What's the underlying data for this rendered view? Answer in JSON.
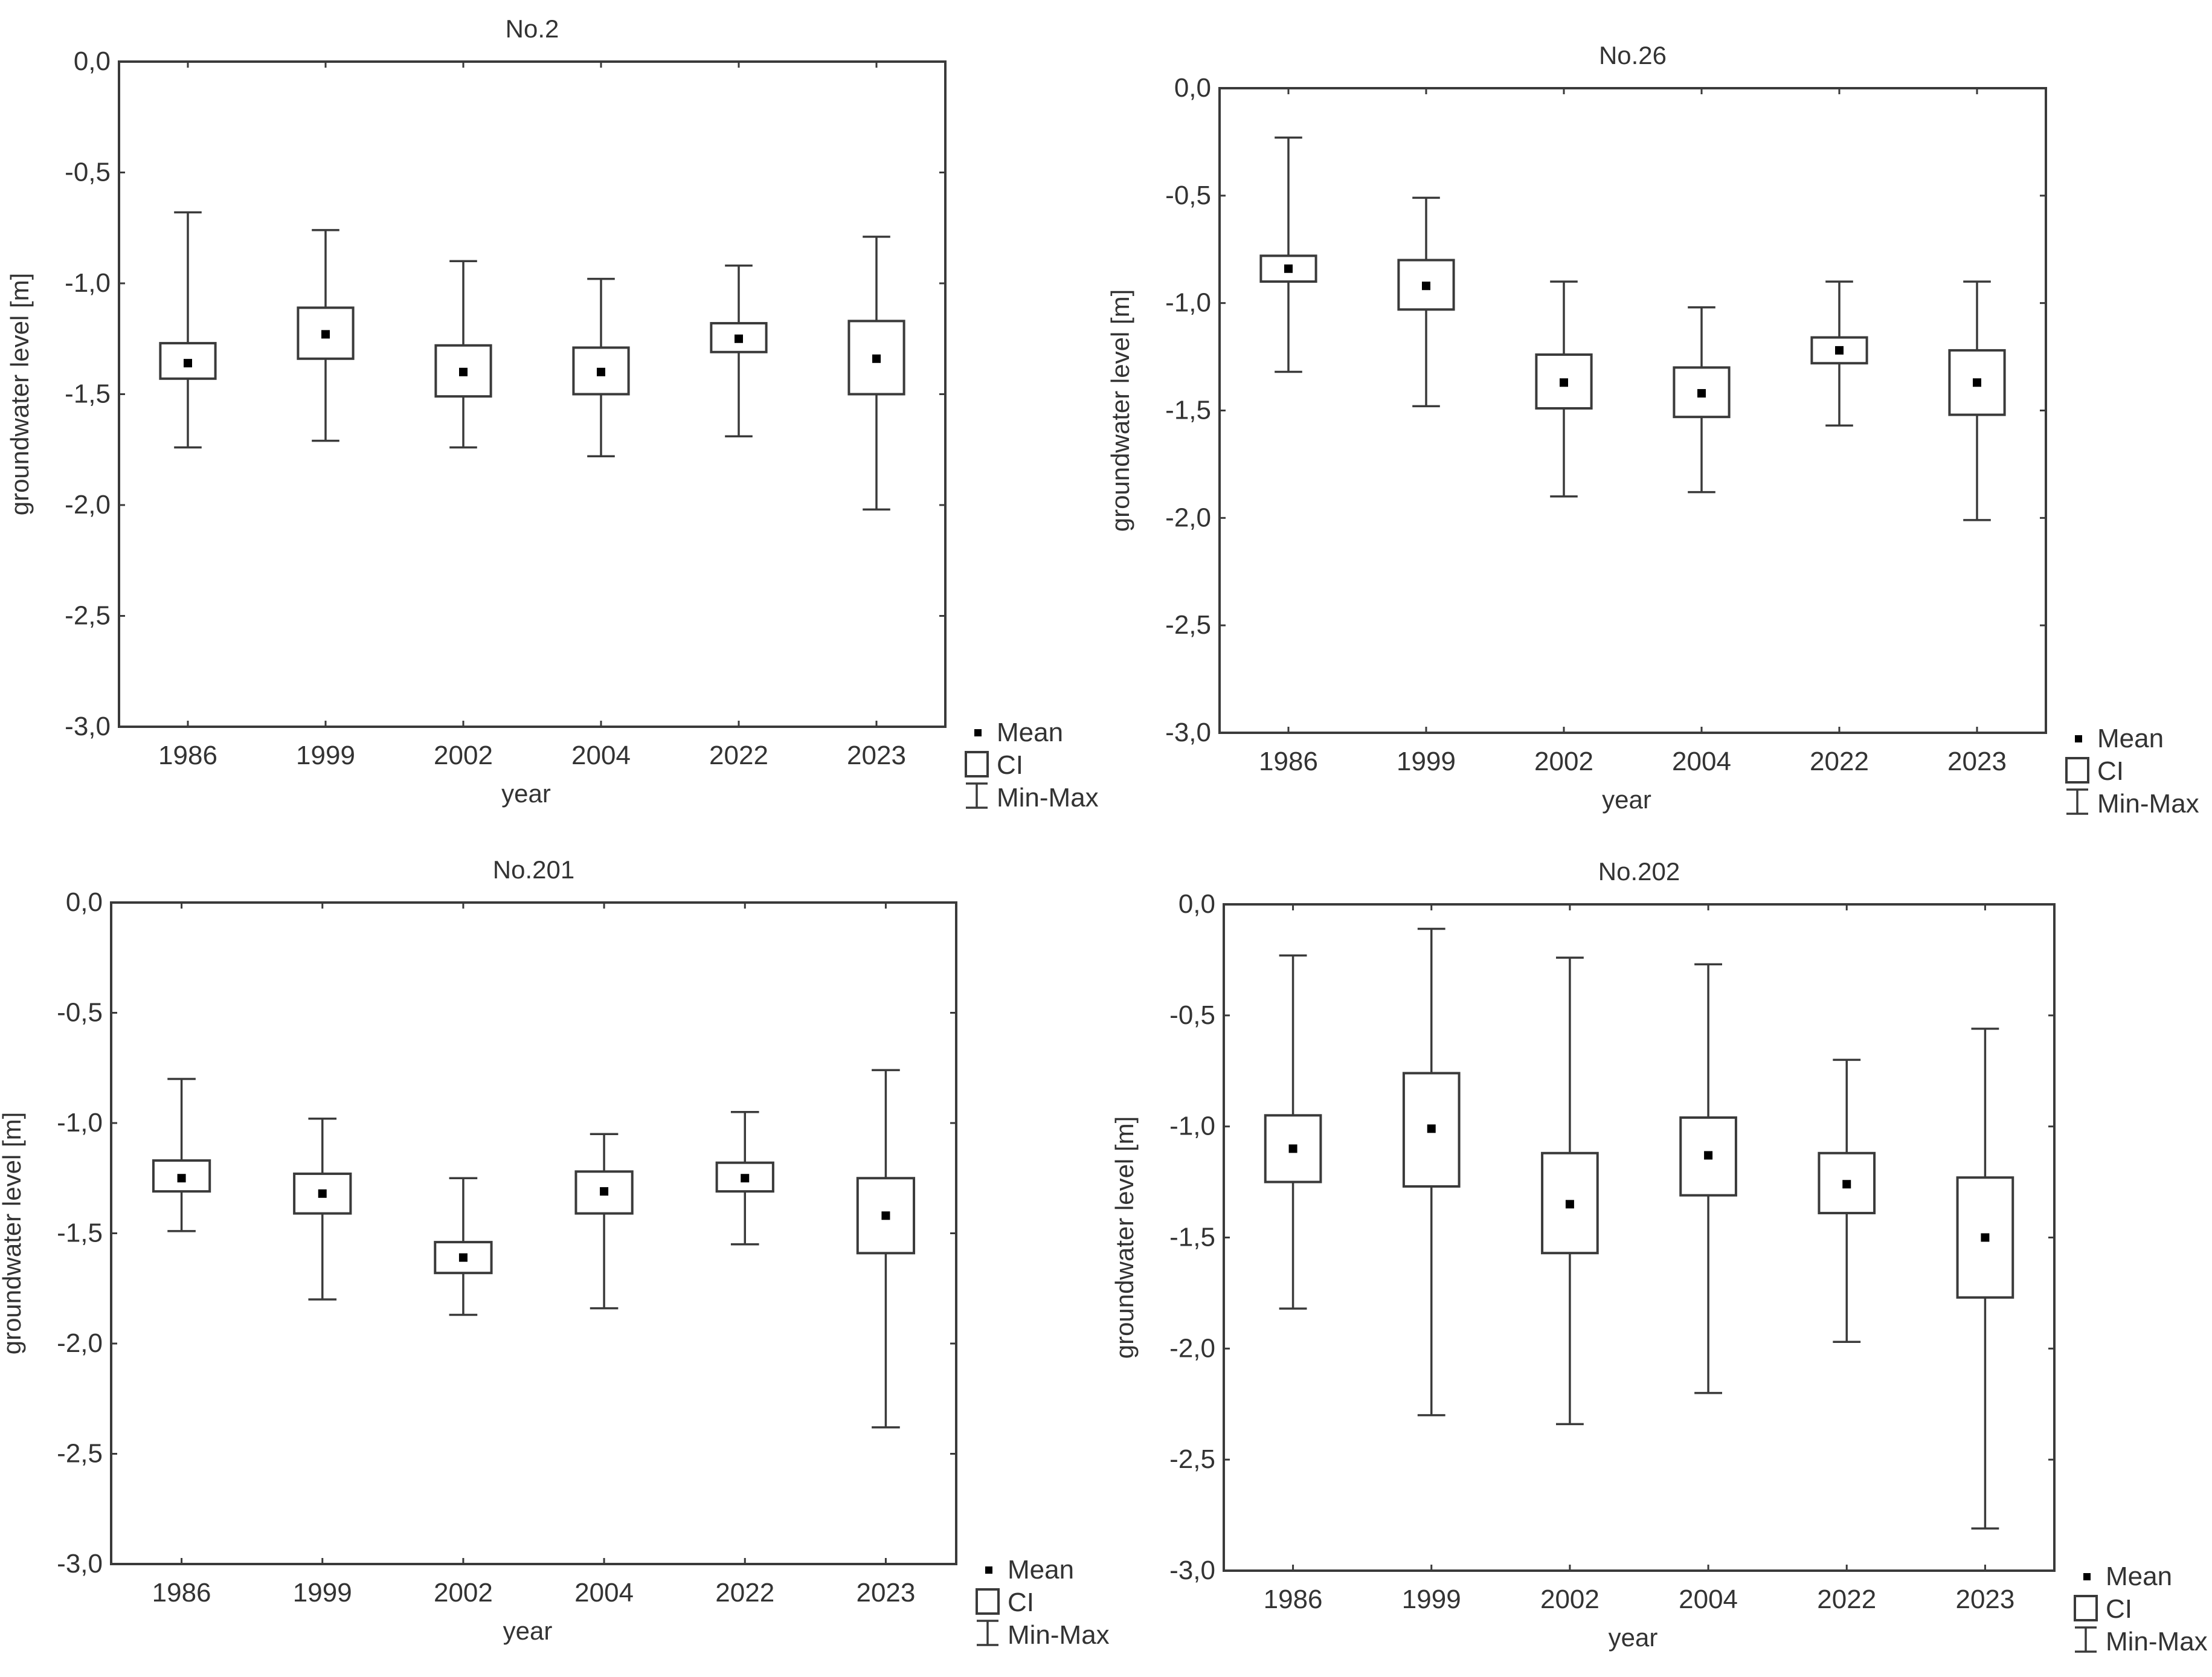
{
  "figure": {
    "legend": {
      "mean_label": "Mean",
      "ci_label": "CI",
      "minmax_label": "Min-Max"
    },
    "colors": {
      "line": "#3a3a3a",
      "mean": "#000000",
      "background": "#ffffff",
      "text": "#333333"
    }
  },
  "chart_data": [
    {
      "type": "box",
      "title": "No.2",
      "xlabel": "year",
      "ylabel": "groundwater level [m]",
      "ylim": [
        -3.0,
        0.0
      ],
      "yticks": [
        "0,0",
        "-0,5",
        "-1,0",
        "-1,5",
        "-2,0",
        "-2,5",
        "-3,0"
      ],
      "categories": [
        "1986",
        "1999",
        "2002",
        "2004",
        "2022",
        "2023"
      ],
      "series": [
        {
          "name": "Max",
          "values": [
            -0.68,
            -0.76,
            -0.9,
            -0.98,
            -0.92,
            -0.79
          ]
        },
        {
          "name": "CI upper",
          "values": [
            -1.27,
            -1.11,
            -1.28,
            -1.29,
            -1.18,
            -1.17
          ]
        },
        {
          "name": "Mean",
          "values": [
            -1.36,
            -1.23,
            -1.4,
            -1.4,
            -1.25,
            -1.34
          ]
        },
        {
          "name": "CI lower",
          "values": [
            -1.43,
            -1.34,
            -1.51,
            -1.5,
            -1.31,
            -1.5
          ]
        },
        {
          "name": "Min",
          "values": [
            -1.74,
            -1.71,
            -1.74,
            -1.78,
            -1.69,
            -2.02
          ]
        }
      ],
      "legend_position": "right-bottom"
    },
    {
      "type": "box",
      "title": "No.26",
      "xlabel": "year",
      "ylabel": "groundwater level [m]",
      "ylim": [
        -3.0,
        0.0
      ],
      "yticks": [
        "0,0",
        "-0,5",
        "-1,0",
        "-1,5",
        "-2,0",
        "-2,5",
        "-3,0"
      ],
      "categories": [
        "1986",
        "1999",
        "2002",
        "2004",
        "2022",
        "2023"
      ],
      "series": [
        {
          "name": "Max",
          "values": [
            -0.23,
            -0.51,
            -0.9,
            -1.02,
            -0.9,
            -0.9
          ]
        },
        {
          "name": "CI upper",
          "values": [
            -0.78,
            -0.8,
            -1.24,
            -1.3,
            -1.16,
            -1.22
          ]
        },
        {
          "name": "Mean",
          "values": [
            -0.84,
            -0.92,
            -1.37,
            -1.42,
            -1.22,
            -1.37
          ]
        },
        {
          "name": "CI lower",
          "values": [
            -0.9,
            -1.03,
            -1.49,
            -1.53,
            -1.28,
            -1.52
          ]
        },
        {
          "name": "Min",
          "values": [
            -1.32,
            -1.48,
            -1.9,
            -1.88,
            -1.57,
            -2.01
          ]
        }
      ],
      "legend_position": "right-bottom"
    },
    {
      "type": "box",
      "title": "No.201",
      "xlabel": "year",
      "ylabel": "groundwater level [m]",
      "ylim": [
        -3.0,
        0.0
      ],
      "yticks": [
        "0,0",
        "-0,5",
        "-1,0",
        "-1,5",
        "-2,0",
        "-2,5",
        "-3,0"
      ],
      "categories": [
        "1986",
        "1999",
        "2002",
        "2004",
        "2022",
        "2023"
      ],
      "series": [
        {
          "name": "Max",
          "values": [
            -0.8,
            -0.98,
            -1.25,
            -1.05,
            -0.95,
            -0.76
          ]
        },
        {
          "name": "CI upper",
          "values": [
            -1.17,
            -1.23,
            -1.54,
            -1.22,
            -1.18,
            -1.25
          ]
        },
        {
          "name": "Mean",
          "values": [
            -1.25,
            -1.32,
            -1.61,
            -1.31,
            -1.25,
            -1.42
          ]
        },
        {
          "name": "CI lower",
          "values": [
            -1.31,
            -1.41,
            -1.68,
            -1.41,
            -1.31,
            -1.59
          ]
        },
        {
          "name": "Min",
          "values": [
            -1.49,
            -1.8,
            -1.87,
            -1.84,
            -1.55,
            -2.38
          ]
        }
      ],
      "legend_position": "right-bottom"
    },
    {
      "type": "box",
      "title": "No.202",
      "xlabel": "year",
      "ylabel": "groundwater level [m]",
      "ylim": [
        -3.0,
        0.0
      ],
      "yticks": [
        "0,0",
        "-0,5",
        "-1,0",
        "-1,5",
        "-2,0",
        "-2,5",
        "-3,0"
      ],
      "categories": [
        "1986",
        "1999",
        "2002",
        "2004",
        "2022",
        "2023"
      ],
      "series": [
        {
          "name": "Max",
          "values": [
            -0.23,
            -0.11,
            -0.24,
            -0.27,
            -0.7,
            -0.56
          ]
        },
        {
          "name": "CI upper",
          "values": [
            -0.95,
            -0.76,
            -1.12,
            -0.96,
            -1.12,
            -1.23
          ]
        },
        {
          "name": "Mean",
          "values": [
            -1.1,
            -1.01,
            -1.35,
            -1.13,
            -1.26,
            -1.5
          ]
        },
        {
          "name": "CI lower",
          "values": [
            -1.25,
            -1.27,
            -1.57,
            -1.31,
            -1.39,
            -1.77
          ]
        },
        {
          "name": "Min",
          "values": [
            -1.82,
            -2.3,
            -2.34,
            -2.2,
            -1.97,
            -2.81
          ]
        }
      ],
      "legend_position": "right-bottom"
    }
  ]
}
